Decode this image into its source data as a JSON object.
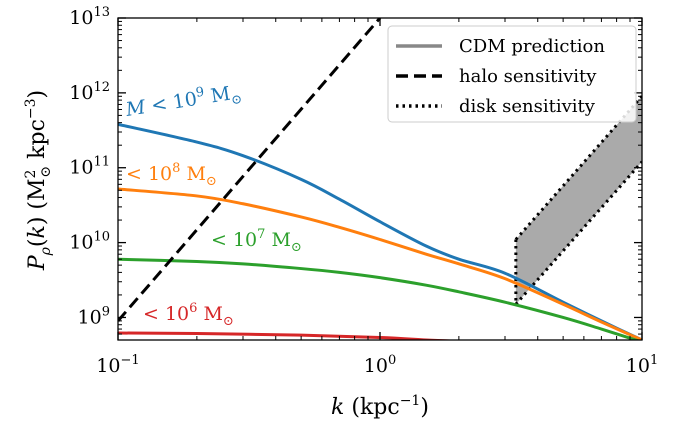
{
  "chart_data": {
    "type": "line",
    "x_scale": "log",
    "y_scale": "log",
    "xlim": [
      0.1,
      10
    ],
    "ylim": [
      500000000,
      10000000000000
    ],
    "xlabel": "k (kpc⁻¹)",
    "ylabel": "Pρ(k) (M⊙² kpc⁻³)",
    "x_ticks": [
      {
        "value": 0.1,
        "base": "10",
        "exp": "−1"
      },
      {
        "value": 1,
        "base": "10",
        "exp": "0"
      },
      {
        "value": 10,
        "base": "10",
        "exp": "1"
      }
    ],
    "y_ticks": [
      {
        "value": 1000000000,
        "base": "10",
        "exp": "9"
      },
      {
        "value": 10000000000,
        "base": "10",
        "exp": "10"
      },
      {
        "value": 100000000000,
        "base": "10",
        "exp": "11"
      },
      {
        "value": 1000000000000,
        "base": "10",
        "exp": "12"
      },
      {
        "value": 10000000000000,
        "base": "10",
        "exp": "13"
      }
    ],
    "legend": {
      "position": "top-right",
      "entries": [
        {
          "label": "CDM prediction",
          "style": "solid",
          "color": "#888888"
        },
        {
          "label": "halo sensitivity",
          "style": "dashed",
          "color": "#000000"
        },
        {
          "label": "disk sensitivity",
          "style": "dotted",
          "color": "#000000"
        }
      ]
    },
    "series": [
      {
        "label_text": "M < 10⁹ M⊙",
        "color": "#1f77b4",
        "x": [
          0.1,
          0.2,
          0.3,
          0.5,
          0.7,
          1.0,
          1.5,
          2.0,
          3.0,
          5.0,
          7.0,
          10.0
        ],
        "y": [
          380000000000,
          220000000000,
          145000000000,
          70000000000,
          38000000000,
          19000000000,
          9000000000,
          6000000000,
          3900000000,
          1600000000,
          900000000,
          500000000
        ]
      },
      {
        "label_text": "< 10⁸ M⊙",
        "color": "#ff7f0e",
        "x": [
          0.1,
          0.2,
          0.3,
          0.5,
          0.7,
          1.0,
          1.5,
          2.0,
          3.0,
          5.0,
          7.0,
          10.0
        ],
        "y": [
          52000000000,
          42000000000,
          33000000000,
          22000000000,
          16000000000,
          11000000000,
          7000000000,
          5200000000,
          3300000000,
          1500000000,
          870000000,
          500000000
        ]
      },
      {
        "label_text": "< 10⁷ M⊙",
        "color": "#2ca02c",
        "x": [
          0.1,
          0.2,
          0.3,
          0.5,
          0.7,
          1.0,
          1.5,
          2.0,
          3.0,
          5.0,
          7.0,
          10.0
        ],
        "y": [
          6000000000,
          5600000000,
          5200000000,
          4500000000,
          4000000000,
          3400000000,
          2700000000,
          2200000000,
          1600000000,
          1000000000,
          700000000,
          470000000
        ]
      },
      {
        "label_text": "< 10⁶ M⊙",
        "color": "#d62728",
        "x": [
          0.1,
          0.2,
          0.5,
          1.0,
          1.5,
          2.0
        ],
        "y": [
          620000000,
          610000000,
          580000000,
          540000000,
          500000000,
          480000000
        ]
      }
    ],
    "halo_sensitivity": {
      "x": [
        0.1,
        1.0
      ],
      "y": [
        900000000,
        10000000000000
      ]
    },
    "disk_sensitivity": {
      "x": [
        3.3,
        10.0
      ],
      "upper": [
        11000000000,
        900000000000
      ],
      "lower": [
        1500000000,
        120000000000
      ]
    }
  }
}
